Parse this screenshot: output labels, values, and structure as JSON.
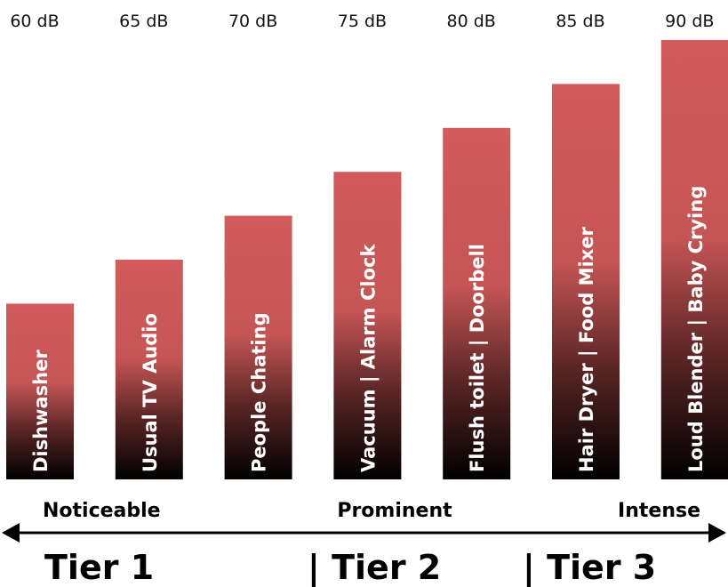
{
  "chart_data": {
    "type": "bar",
    "categories": [
      "Dishwasher",
      "Usual TV Audio",
      "People Chating",
      "Vacuum | Alarm Clock",
      "Flush toilet | Doorbell",
      "Hair Dryer | Food Mixer",
      "Loud Blender | Baby Crying"
    ],
    "values": [
      60,
      65,
      70,
      75,
      80,
      85,
      90
    ],
    "value_labels": [
      "60 dB",
      "65 dB",
      "70 dB",
      "75 dB",
      "80 dB",
      "85 dB",
      "90 dB"
    ],
    "unit": "dB",
    "ylim": [
      40,
      90
    ],
    "grid": false,
    "levels": [
      "Noticeable",
      "Prominent",
      "Intense"
    ],
    "tiers": [
      "Tier 1",
      "| Tier 2",
      "| Tier 3"
    ],
    "colors": {
      "bar_top": "#d25b5b",
      "bar_bottom": "#000000",
      "text": "#111111"
    }
  }
}
